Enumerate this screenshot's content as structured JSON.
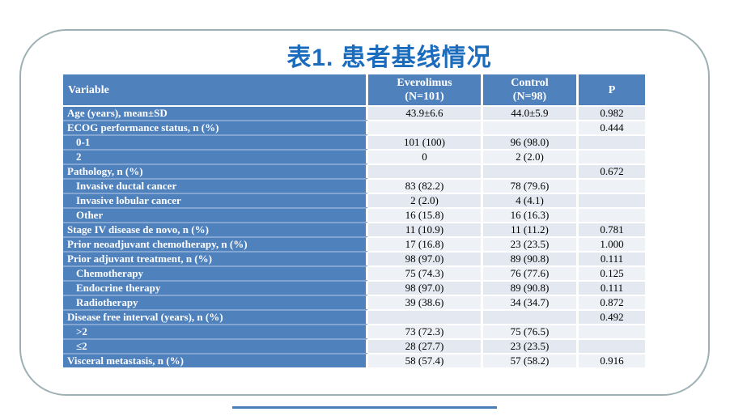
{
  "slide": {
    "title": "表1. 患者基线情况",
    "title_color": "#1b6cbd",
    "frame_border_color": "#9db1b4",
    "bottom_line_color": "#4a7cb8"
  },
  "table": {
    "header_bg": "#4f81bd",
    "label_col_bg": "#4f81bd",
    "band_color_odd": "#e3e8f1",
    "band_color_even": "#eef1f6",
    "columns": {
      "variable": "Variable",
      "everolimus_line1": "Everolimus",
      "everolimus_line2": "(N=101)",
      "control_line1": "Control",
      "control_line2": "(N=98)",
      "p": "P"
    },
    "rows": [
      {
        "label": "Age (years), mean±SD",
        "indent": 0,
        "everolimus": "43.9±6.6",
        "control": "44.0±5.9",
        "p": "0.982"
      },
      {
        "label": "ECOG performance status, n (%)",
        "indent": 0,
        "everolimus": "",
        "control": "",
        "p": "0.444"
      },
      {
        "label": "0-1",
        "indent": 1,
        "everolimus": "101 (100)",
        "control": "96 (98.0)",
        "p": ""
      },
      {
        "label": "2",
        "indent": 1,
        "everolimus": "0",
        "control": "2 (2.0)",
        "p": ""
      },
      {
        "label": "Pathology, n (%)",
        "indent": 0,
        "everolimus": "",
        "control": "",
        "p": "0.672"
      },
      {
        "label": "Invasive ductal cancer",
        "indent": 1,
        "everolimus": "83 (82.2)",
        "control": "78 (79.6)",
        "p": ""
      },
      {
        "label": "Invasive lobular cancer",
        "indent": 1,
        "everolimus": "2 (2.0)",
        "control": "4 (4.1)",
        "p": ""
      },
      {
        "label": "Other",
        "indent": 1,
        "everolimus": "16 (15.8)",
        "control": "16 (16.3)",
        "p": ""
      },
      {
        "label": "Stage IV disease de novo, n (%)",
        "indent": 0,
        "everolimus": "11 (10.9)",
        "control": "11 (11.2)",
        "p": "0.781"
      },
      {
        "label": "Prior neoadjuvant chemotherapy, n (%)",
        "indent": 0,
        "everolimus": "17 (16.8)",
        "control": "23 (23.5)",
        "p": "1.000"
      },
      {
        "label": "Prior adjuvant treatment, n (%)",
        "indent": 0,
        "everolimus": "98 (97.0)",
        "control": "89 (90.8)",
        "p": "0.111"
      },
      {
        "label": "Chemotherapy",
        "indent": 1,
        "everolimus": "75 (74.3)",
        "control": "76 (77.6)",
        "p": "0.125"
      },
      {
        "label": "Endocrine therapy",
        "indent": 1,
        "everolimus": "98 (97.0)",
        "control": "89 (90.8)",
        "p": "0.111"
      },
      {
        "label": "Radiotherapy",
        "indent": 1,
        "everolimus": "39 (38.6)",
        "control": "34 (34.7)",
        "p": "0.872"
      },
      {
        "label": "Disease free interval (years), n (%)",
        "indent": 0,
        "everolimus": "",
        "control": "",
        "p": "0.492"
      },
      {
        "label": ">2",
        "indent": 1,
        "everolimus": "73 (72.3)",
        "control": "75 (76.5)",
        "p": ""
      },
      {
        "label": "≤2",
        "indent": 1,
        "everolimus": "28 (27.7)",
        "control": "23 (23.5)",
        "p": ""
      },
      {
        "label": "Visceral metastasis, n (%)",
        "indent": 0,
        "everolimus": "58 (57.4)",
        "control": "57 (58.2)",
        "p": "0.916"
      }
    ]
  }
}
